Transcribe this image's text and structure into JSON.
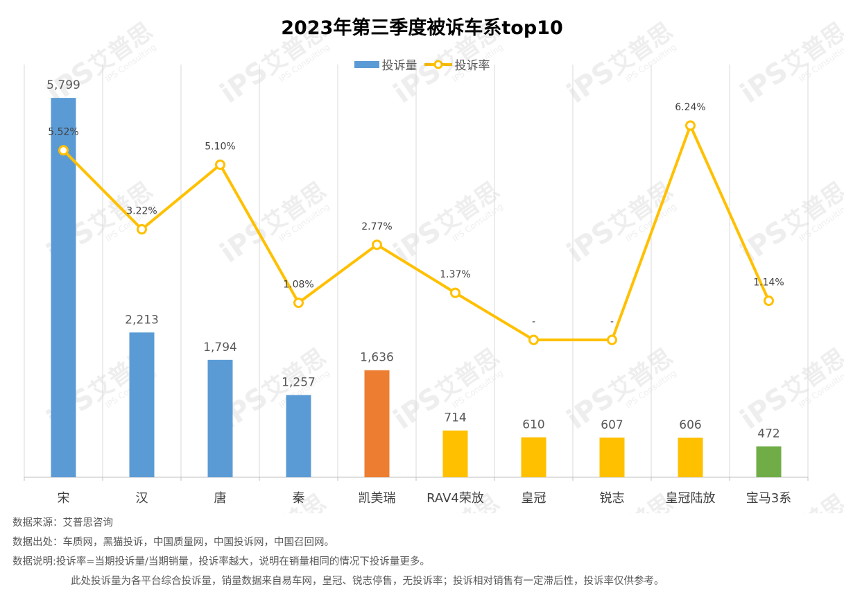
{
  "chart_data": {
    "type": "bar",
    "title": "2023年第三季度被诉车系top10",
    "categories": [
      "宋",
      "汉",
      "唐",
      "秦",
      "凯美瑞",
      "RAV4荣放",
      "皇冠",
      "锐志",
      "皇冠陆放",
      "宝马3系"
    ],
    "series": [
      {
        "name": "投诉量",
        "type": "bar",
        "values": [
          5799,
          2213,
          1794,
          1257,
          1636,
          714,
          610,
          607,
          606,
          472
        ],
        "labels": [
          "5,799",
          "2,213",
          "1,794",
          "1,257",
          "1,636",
          "714",
          "610",
          "607",
          "606",
          "472"
        ],
        "colors": [
          "#5B9BD5",
          "#5B9BD5",
          "#5B9BD5",
          "#5B9BD5",
          "#ED7D31",
          "#FFC000",
          "#FFC000",
          "#FFC000",
          "#FFC000",
          "#70AD47"
        ]
      },
      {
        "name": "投诉率",
        "type": "line",
        "values": [
          5.52,
          3.22,
          5.1,
          1.08,
          2.77,
          1.37,
          0,
          0,
          6.24,
          1.14
        ],
        "labels": [
          "5.52%",
          "3.22%",
          "5.10%",
          "1.08%",
          "2.77%",
          "1.37%",
          "-",
          "-",
          "6.24%",
          "1.14%"
        ],
        "color": "#FFC000"
      }
    ],
    "legend_position": "top",
    "grid": "vertical",
    "ylim_bar": [
      0,
      5800
    ],
    "ylim_line": [
      -3.15,
      6.55
    ]
  },
  "legend": {
    "bar_label": "投诉量",
    "line_label": "投诉率",
    "bar_color": "#5B9BD5",
    "line_color": "#FFC000"
  },
  "notes": {
    "line1": "数据来源：艾普思咨询",
    "line2": "数据出处：车质网，黑猫投诉，中国质量网，中国投诉网，中国召回网。",
    "line3": "数据说明:投诉率=当期投诉量/当期销量，投诉率越大，说明在销量相同的情况下投诉量更多。",
    "line4": "此处投诉量为各平台综合投诉量，销量数据来自易车网，皇冠、锐志停售，无投诉率；投诉相对销售有一定滞后性，投诉率仅供参考。"
  },
  "watermark": {
    "brand": "艾普思",
    "logo": "iPS",
    "sub": "IPS Consulting"
  }
}
